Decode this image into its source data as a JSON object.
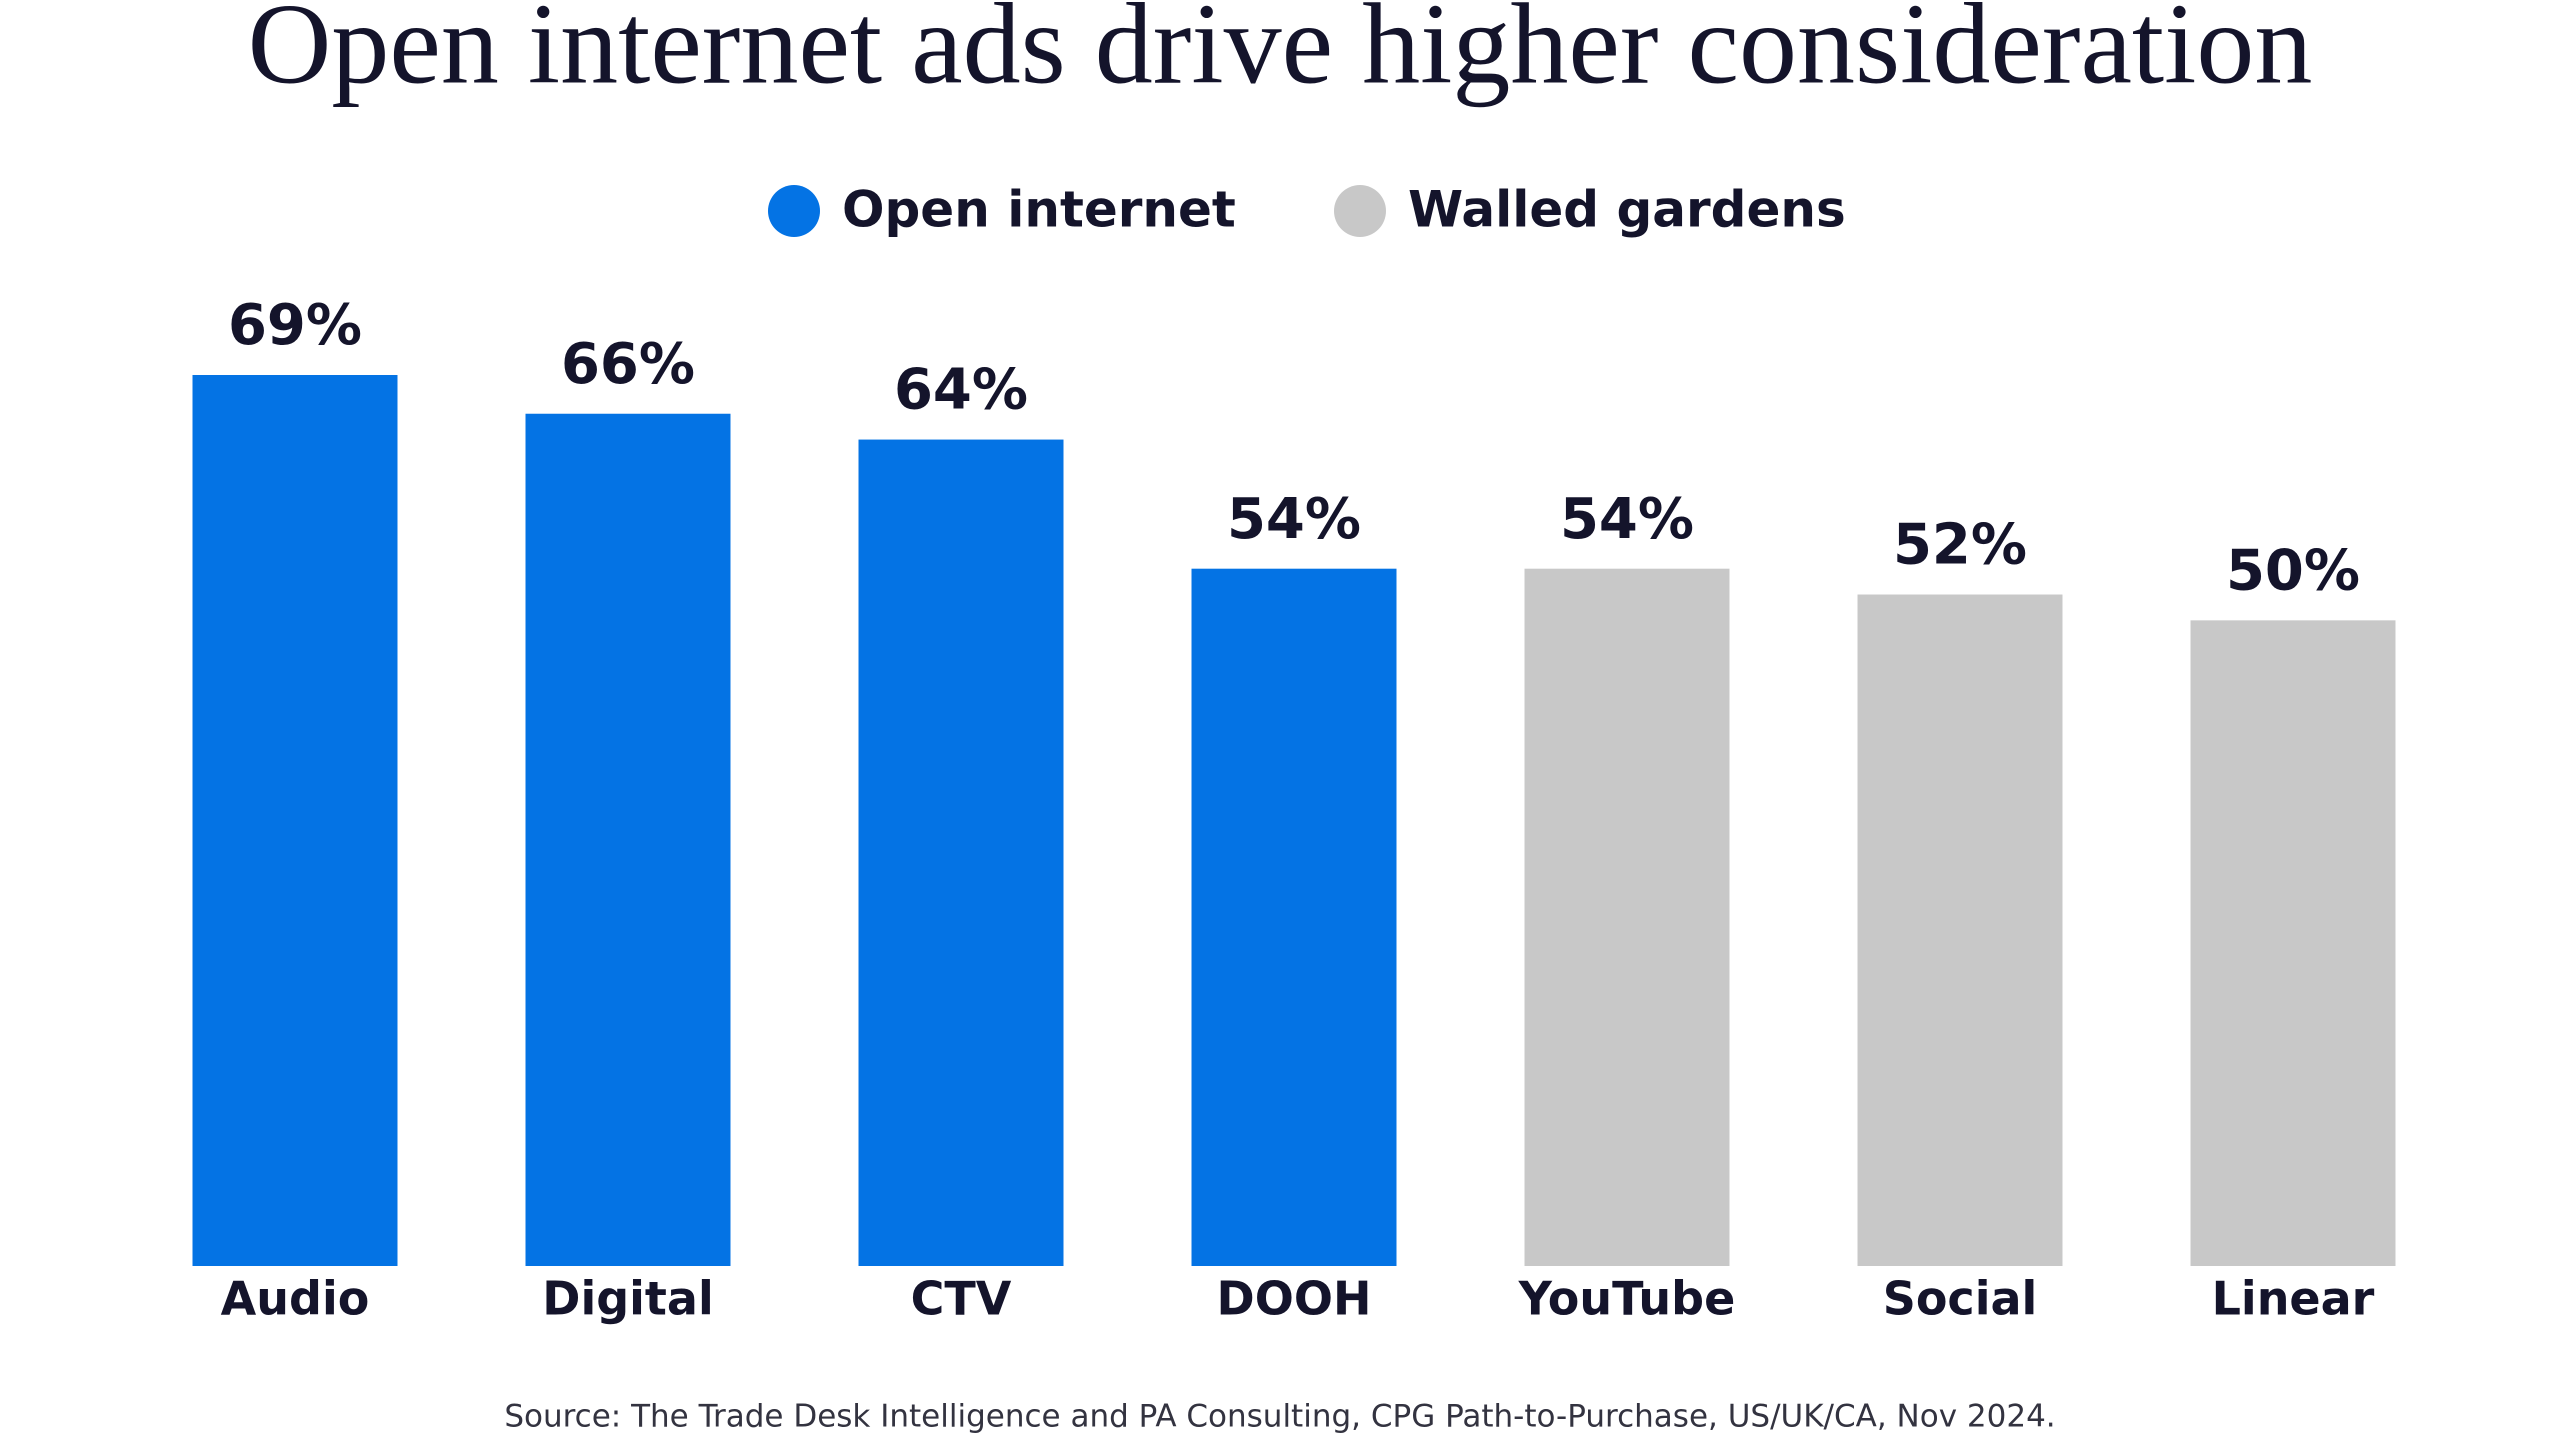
{
  "chart_data": {
    "type": "bar",
    "title": "Open internet ads drive higher consideration",
    "categories": [
      "Audio",
      "Digital",
      "CTV",
      "DOOH",
      "YouTube",
      "Social",
      "Linear"
    ],
    "series": [
      {
        "name": "Open internet",
        "color": "#0473e4",
        "values": [
          69,
          66,
          64,
          54,
          null,
          null,
          null
        ],
        "value_labels": [
          "69%",
          "66%",
          "64%",
          "54%",
          null,
          null,
          null
        ]
      },
      {
        "name": "Walled gardens",
        "color": "#c8c8c8",
        "values": [
          null,
          null,
          null,
          null,
          54,
          52,
          50
        ],
        "value_labels": [
          null,
          null,
          null,
          null,
          "54%",
          "52%",
          "50%"
        ]
      }
    ],
    "source": "Source: The Trade Desk Intelligence and PA Consulting, CPG Path-to-Purchase, US/UK/CA, Nov 2024."
  }
}
